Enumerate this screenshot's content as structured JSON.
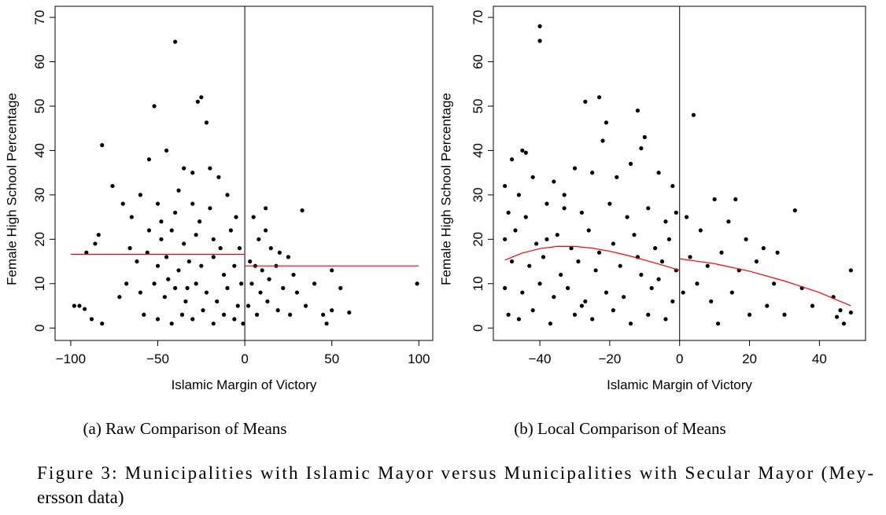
{
  "chart_data": [
    {
      "type": "scatter",
      "caption": "(a) Raw Comparison of Means",
      "xlabel": "Islamic Margin of Victory",
      "ylabel": "Female High School Percentage",
      "color": "#000000",
      "vline": 0,
      "xlim": [
        -109,
        108
      ],
      "ylim": [
        -2.8,
        72.5
      ],
      "xticks": [
        {
          "value": -100,
          "label": "−100"
        },
        {
          "value": -50,
          "label": "−50"
        },
        0,
        50,
        100
      ],
      "yticks": [
        0,
        10,
        20,
        30,
        40,
        50,
        60,
        70
      ],
      "x": [
        -40,
        -52,
        -25,
        -27,
        -22,
        -82,
        -76,
        -84,
        -86,
        -91,
        -98,
        -95,
        -92,
        -88,
        -82,
        99,
        33,
        50,
        45,
        47,
        60,
        55,
        50,
        -55,
        -45,
        -35,
        -30,
        -20,
        -15,
        -10,
        -60,
        -65,
        -50,
        -40,
        -30,
        -20,
        -5,
        -55,
        -48,
        -42,
        -35,
        -28,
        -18,
        -8,
        -3,
        -62,
        -56,
        -50,
        -45,
        -38,
        -32,
        -25,
        -18,
        -12,
        -6,
        -2,
        -68,
        -60,
        -52,
        -46,
        -40,
        -34,
        -28,
        -22,
        -16,
        -10,
        -4,
        -58,
        -50,
        -42,
        -36,
        -30,
        -24,
        -18,
        -12,
        -6,
        -1,
        -70,
        -72,
        -66,
        5,
        8,
        12,
        15,
        20,
        3,
        6,
        10,
        18,
        25,
        4,
        9,
        14,
        22,
        28,
        2,
        7,
        13,
        19,
        26,
        35,
        30,
        40,
        12,
        -48,
        -38,
        -26,
        -14,
        -44,
        -33
      ],
      "y": [
        64.5,
        50,
        52,
        51,
        46.3,
        41.2,
        32,
        21,
        19,
        17,
        5,
        5,
        4.3,
        2,
        1,
        10,
        26.5,
        13,
        3,
        1,
        3.5,
        9,
        4,
        38,
        40,
        36,
        35,
        36,
        34,
        30,
        30,
        25,
        28,
        26,
        28,
        27,
        25,
        22,
        20,
        22,
        19,
        21,
        20,
        22,
        18,
        15,
        17,
        14,
        16,
        13,
        15,
        14,
        16,
        12,
        14,
        10,
        10,
        8,
        10,
        7,
        9,
        6,
        10,
        8,
        6,
        9,
        5,
        3,
        2,
        1,
        3,
        2,
        4,
        1,
        3,
        2,
        1,
        28,
        7,
        18,
        25,
        20,
        22,
        18,
        17,
        15,
        14,
        13,
        14,
        16,
        10,
        8,
        11,
        9,
        12,
        5,
        3,
        6,
        4,
        3,
        5,
        8,
        10,
        27,
        24,
        31,
        24,
        18,
        11,
        9
      ],
      "fits": [
        {
          "color": "#ff0000",
          "x": [
            -100,
            0
          ],
          "y": [
            16.6,
            16.6
          ]
        },
        {
          "color": "#ff0000",
          "x": [
            0,
            100
          ],
          "y": [
            14,
            14
          ]
        }
      ]
    },
    {
      "type": "scatter",
      "caption": "(b) Local Comparison of Means",
      "xlabel": "Islamic Margin of Victory",
      "ylabel": "Female High School Percentage",
      "color": "#000000",
      "vline": 0,
      "xlim": [
        -53.3,
        53.2
      ],
      "ylim": [
        -2.8,
        72.5
      ],
      "xticks": [
        {
          "value": -40,
          "label": "−40"
        },
        {
          "value": -20,
          "label": "−20"
        },
        0,
        20,
        40
      ],
      "yticks": [
        0,
        10,
        20,
        30,
        40,
        50,
        60,
        70
      ],
      "x": [
        -40,
        -40,
        -27,
        -23,
        -21,
        -22,
        -12,
        -10,
        -11,
        4,
        33,
        49,
        44,
        45,
        47,
        49,
        46,
        -48,
        -45,
        -44,
        -50,
        -46,
        -42,
        -36,
        -30,
        -25,
        -18,
        -14,
        -6,
        -2,
        -49,
        -44,
        -38,
        -33,
        -28,
        -20,
        -15,
        -9,
        -4,
        -1,
        -50,
        -47,
        -41,
        -35,
        -31,
        -26,
        -19,
        -13,
        -7,
        -3,
        -48,
        -43,
        -39,
        -34,
        -29,
        -24,
        -17,
        -11,
        -5,
        -1,
        -50,
        -45,
        -40,
        -36,
        -32,
        -27,
        -21,
        -16,
        -8,
        -2,
        -49,
        -46,
        -42,
        -37,
        -30,
        -25,
        -19,
        -14,
        -9,
        -4,
        2,
        6,
        10,
        14,
        19,
        24,
        28,
        3,
        8,
        12,
        17,
        22,
        27,
        35,
        1,
        5,
        9,
        15,
        20,
        25,
        30,
        38,
        11,
        16,
        -33,
        -23,
        -6,
        -28,
        -12,
        -38
      ],
      "y": [
        68,
        64.7,
        51,
        52,
        46.3,
        42.2,
        49,
        43,
        40.5,
        48,
        26.5,
        13,
        7,
        2.5,
        1,
        3.5,
        4,
        38,
        40,
        39.5,
        32,
        30,
        34,
        33,
        36,
        35,
        34,
        37,
        35,
        32,
        26,
        25,
        28,
        27,
        26,
        28,
        25,
        27,
        24,
        26,
        20,
        22,
        19,
        21,
        18,
        22,
        19,
        21,
        18,
        20,
        15,
        14,
        16,
        12,
        15,
        13,
        14,
        12,
        15,
        13,
        9,
        8,
        10,
        7,
        9,
        6,
        8,
        7,
        9,
        6,
        3,
        2,
        4,
        1,
        3,
        2,
        4,
        1,
        3,
        2,
        25,
        22,
        29,
        24,
        20,
        18,
        17,
        16,
        14,
        17,
        13,
        15,
        10,
        9,
        8,
        10,
        6,
        8,
        3,
        5,
        3,
        5,
        1,
        29,
        30,
        17,
        11,
        5,
        16,
        20
      ],
      "fits": [
        {
          "color": "#ff0000",
          "x": [
            -50,
            -45,
            -40,
            -35,
            -30,
            -25,
            -20,
            -15,
            -10,
            -5,
            0
          ],
          "y": [
            15.3,
            16.9,
            17.9,
            18.4,
            18.4,
            18,
            17.3,
            16.4,
            15.3,
            14.2,
            13
          ]
        },
        {
          "color": "#ff0000",
          "x": [
            0,
            10,
            20,
            30,
            40,
            49
          ],
          "y": [
            15.6,
            14.5,
            12.8,
            10.6,
            8,
            5
          ]
        }
      ]
    }
  ],
  "figure_caption": [
    "Figure 3: Municipalities with Islamic Mayor versus Municipalities with Secular Mayor (Mey-",
    "ersson data)"
  ]
}
